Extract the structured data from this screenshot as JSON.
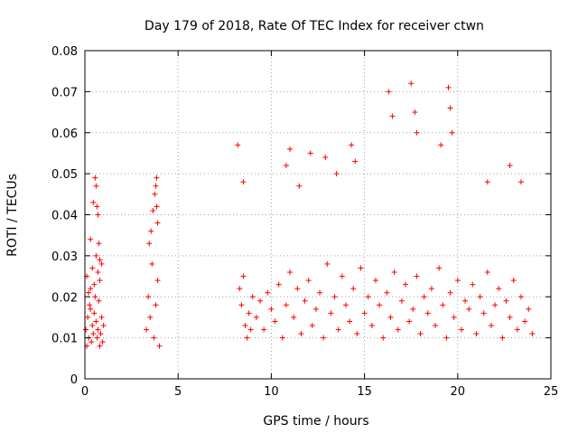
{
  "chart_data": {
    "type": "scatter",
    "title": "Day 179 of 2018, Rate Of TEC Index for receiver ctwn",
    "xlabel": "GPS time / hours",
    "ylabel": "ROTI / TECUs",
    "xlim": [
      0,
      25
    ],
    "ylim": [
      0,
      0.08
    ],
    "xticks": [
      "0",
      "5",
      "10",
      "15",
      "20",
      "25"
    ],
    "yticks": [
      "0",
      "0.01",
      "0.02",
      "0.03",
      "0.04",
      "0.05",
      "0.06",
      "0.07",
      "0.08"
    ],
    "grid": true,
    "marker": "plus",
    "color": "#ff0000",
    "series": [
      {
        "x": [
          0.05,
          0.1,
          0.15,
          0.2,
          0.25,
          0.3,
          0.35,
          0.4,
          0.45,
          0.5,
          0.55,
          0.6,
          0.65,
          0.7,
          0.75,
          0.8,
          0.85,
          0.9,
          0.95,
          1.0,
          0.1,
          0.2,
          0.3,
          0.4,
          0.5,
          0.6,
          0.7,
          0.8,
          0.9,
          0.3,
          0.45,
          0.55,
          0.6,
          0.65,
          0.7,
          0.75,
          0.8,
          3.3,
          3.4,
          3.5,
          3.6,
          3.7,
          3.8,
          3.9,
          4.0,
          3.45,
          3.55,
          3.65,
          3.75,
          3.85,
          3.8,
          3.85,
          3.9,
          8.3,
          8.4,
          8.5,
          8.6,
          8.7,
          8.8,
          8.9,
          9.0,
          9.2,
          9.4,
          9.6,
          9.8,
          10.0,
          10.2,
          10.4,
          10.6,
          10.8,
          11.0,
          11.2,
          11.4,
          11.6,
          11.8,
          12.0,
          12.2,
          12.4,
          12.6,
          12.8,
          13.0,
          13.2,
          13.4,
          13.6,
          13.8,
          14.0,
          14.2,
          14.4,
          14.6,
          14.8,
          15.0,
          15.2,
          15.4,
          15.6,
          15.8,
          16.0,
          16.2,
          16.4,
          16.6,
          16.8,
          17.0,
          17.2,
          17.4,
          17.6,
          17.8,
          18.0,
          18.2,
          18.4,
          18.6,
          18.8,
          19.0,
          19.2,
          19.4,
          19.6,
          19.8,
          20.0,
          20.2,
          20.4,
          20.6,
          20.8,
          21.0,
          21.2,
          21.4,
          21.6,
          21.8,
          22.0,
          22.2,
          22.4,
          22.6,
          22.8,
          23.0,
          23.2,
          23.4,
          23.6,
          23.8,
          24.0,
          8.2,
          8.5,
          10.8,
          11.0,
          11.5,
          12.1,
          12.9,
          13.5,
          14.3,
          14.5,
          16.3,
          16.5,
          17.5,
          17.7,
          17.8,
          19.1,
          19.5,
          19.6,
          19.7,
          21.6,
          22.8,
          23.4
        ],
        "y": [
          0.012,
          0.008,
          0.015,
          0.01,
          0.018,
          0.022,
          0.009,
          0.013,
          0.011,
          0.016,
          0.02,
          0.014,
          0.01,
          0.012,
          0.019,
          0.008,
          0.011,
          0.015,
          0.009,
          0.013,
          0.025,
          0.021,
          0.017,
          0.027,
          0.023,
          0.03,
          0.026,
          0.024,
          0.028,
          0.034,
          0.043,
          0.049,
          0.047,
          0.042,
          0.04,
          0.033,
          0.029,
          0.012,
          0.02,
          0.015,
          0.028,
          0.01,
          0.018,
          0.024,
          0.008,
          0.033,
          0.036,
          0.041,
          0.045,
          0.049,
          0.047,
          0.042,
          0.038,
          0.022,
          0.018,
          0.025,
          0.013,
          0.01,
          0.016,
          0.012,
          0.02,
          0.015,
          0.019,
          0.012,
          0.021,
          0.017,
          0.014,
          0.023,
          0.01,
          0.018,
          0.026,
          0.015,
          0.022,
          0.011,
          0.019,
          0.024,
          0.013,
          0.017,
          0.021,
          0.01,
          0.028,
          0.016,
          0.02,
          0.012,
          0.025,
          0.018,
          0.014,
          0.022,
          0.011,
          0.027,
          0.016,
          0.02,
          0.013,
          0.024,
          0.018,
          0.01,
          0.021,
          0.015,
          0.026,
          0.012,
          0.019,
          0.023,
          0.014,
          0.017,
          0.025,
          0.011,
          0.02,
          0.016,
          0.022,
          0.013,
          0.027,
          0.018,
          0.01,
          0.021,
          0.015,
          0.024,
          0.012,
          0.019,
          0.017,
          0.023,
          0.011,
          0.02,
          0.016,
          0.026,
          0.013,
          0.018,
          0.022,
          0.01,
          0.019,
          0.015,
          0.024,
          0.012,
          0.02,
          0.014,
          0.017,
          0.011,
          0.057,
          0.048,
          0.052,
          0.056,
          0.047,
          0.055,
          0.054,
          0.05,
          0.057,
          0.053,
          0.07,
          0.064,
          0.072,
          0.065,
          0.06,
          0.057,
          0.071,
          0.066,
          0.06,
          0.048,
          0.052,
          0.048
        ]
      }
    ]
  }
}
